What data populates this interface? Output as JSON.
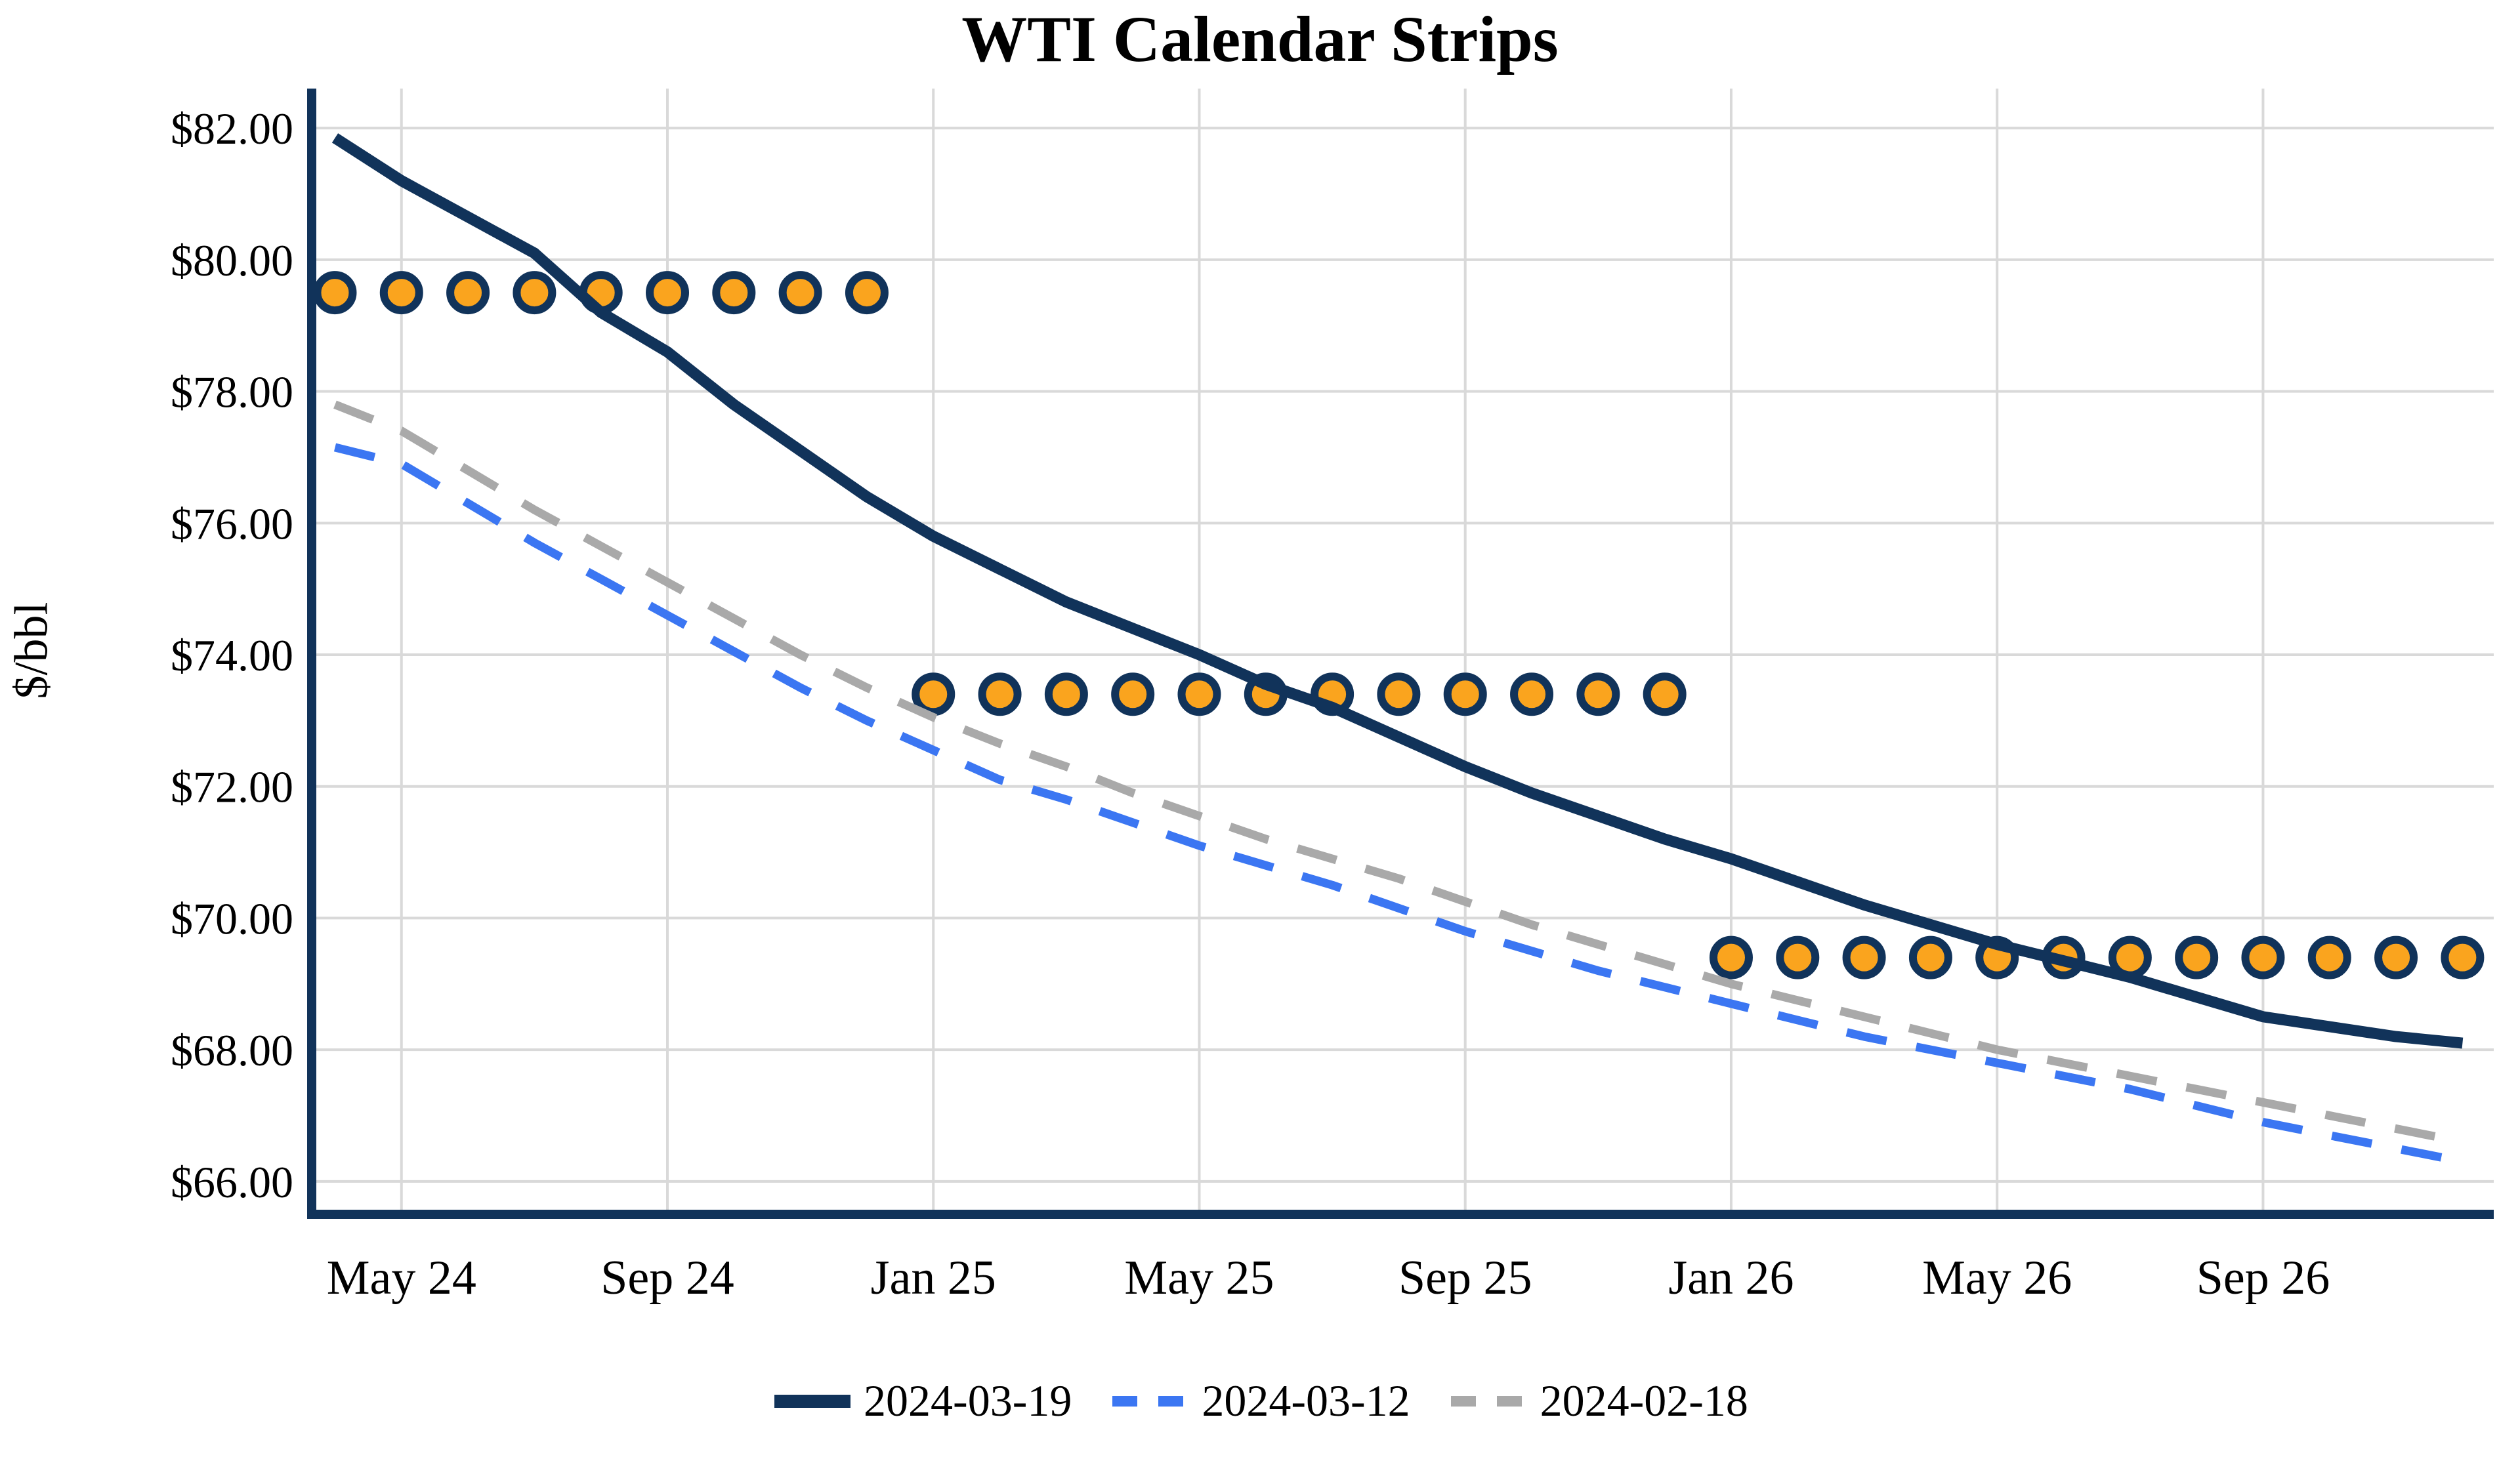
{
  "chart_data": {
    "type": "line",
    "title": "WTI Calendar Strips",
    "ylabel": "$/bbl",
    "y_tick_prefix": "$",
    "y_tick_decimals": 2,
    "yticks": [
      66,
      68,
      70,
      72,
      74,
      76,
      78,
      80,
      82
    ],
    "ylim": [
      65.5,
      82.6
    ],
    "xlim": [
      -0.35,
      32.47
    ],
    "x_tick_labels": [
      "May 24",
      "Sep 24",
      "Jan 25",
      "May 25",
      "Sep 25",
      "Jan 26",
      "May 26",
      "Sep 26"
    ],
    "x_tick_positions": [
      1,
      5,
      9,
      13,
      17,
      21,
      25,
      29
    ],
    "x_point_count": 33,
    "grid": true,
    "legend_position": "bottom-center",
    "colors": {
      "navy": "#11335A",
      "blue": "#3B76F2",
      "gray": "#A9A9A9",
      "marker_fill": "#FAA41E",
      "marker_edge": "#11335A",
      "gridline": "#D9D9D9",
      "text": "#000000"
    },
    "series": [
      {
        "name": "2024-03-19",
        "color": "#11335A",
        "style": "solid",
        "width": 17,
        "values": [
          81.85,
          81.2,
          80.65,
          80.1,
          79.2,
          78.6,
          77.8,
          77.1,
          76.4,
          75.8,
          75.3,
          74.8,
          74.4,
          74.0,
          73.55,
          73.2,
          72.75,
          72.3,
          71.9,
          71.55,
          71.2,
          70.9,
          70.55,
          70.2,
          69.9,
          69.6,
          69.35,
          69.1,
          68.8,
          68.5,
          68.35,
          68.2,
          68.1
        ]
      },
      {
        "name": "2024-03-12",
        "color": "#3B76F2",
        "style": "dashed",
        "width": 13,
        "values": [
          77.15,
          76.9,
          76.3,
          75.7,
          75.15,
          74.6,
          74.05,
          73.5,
          73.0,
          72.55,
          72.1,
          71.8,
          71.45,
          71.1,
          70.8,
          70.5,
          70.15,
          69.8,
          69.5,
          69.2,
          68.95,
          68.7,
          68.45,
          68.2,
          68.0,
          67.8,
          67.6,
          67.4,
          67.15,
          66.9,
          66.7,
          66.5,
          66.3
        ]
      },
      {
        "name": "2024-02-18",
        "color": "#A9A9A9",
        "style": "dashed",
        "width": 13,
        "values": [
          77.8,
          77.4,
          76.8,
          76.2,
          75.65,
          75.1,
          74.55,
          74.0,
          73.5,
          73.05,
          72.65,
          72.3,
          71.9,
          71.55,
          71.2,
          70.9,
          70.6,
          70.25,
          69.9,
          69.6,
          69.3,
          69.0,
          68.75,
          68.5,
          68.25,
          68.0,
          67.8,
          67.6,
          67.4,
          67.2,
          67.0,
          66.8,
          66.6
        ]
      }
    ],
    "markers": {
      "shape": "circle",
      "fill": "#FAA41E",
      "edge": "#11335A",
      "groups": [
        {
          "x_start": 0,
          "x_end": 8,
          "y": 79.5
        },
        {
          "x_start": 9,
          "x_end": 20,
          "y": 73.4
        },
        {
          "x_start": 21,
          "x_end": 32,
          "y": 69.4
        }
      ]
    }
  }
}
